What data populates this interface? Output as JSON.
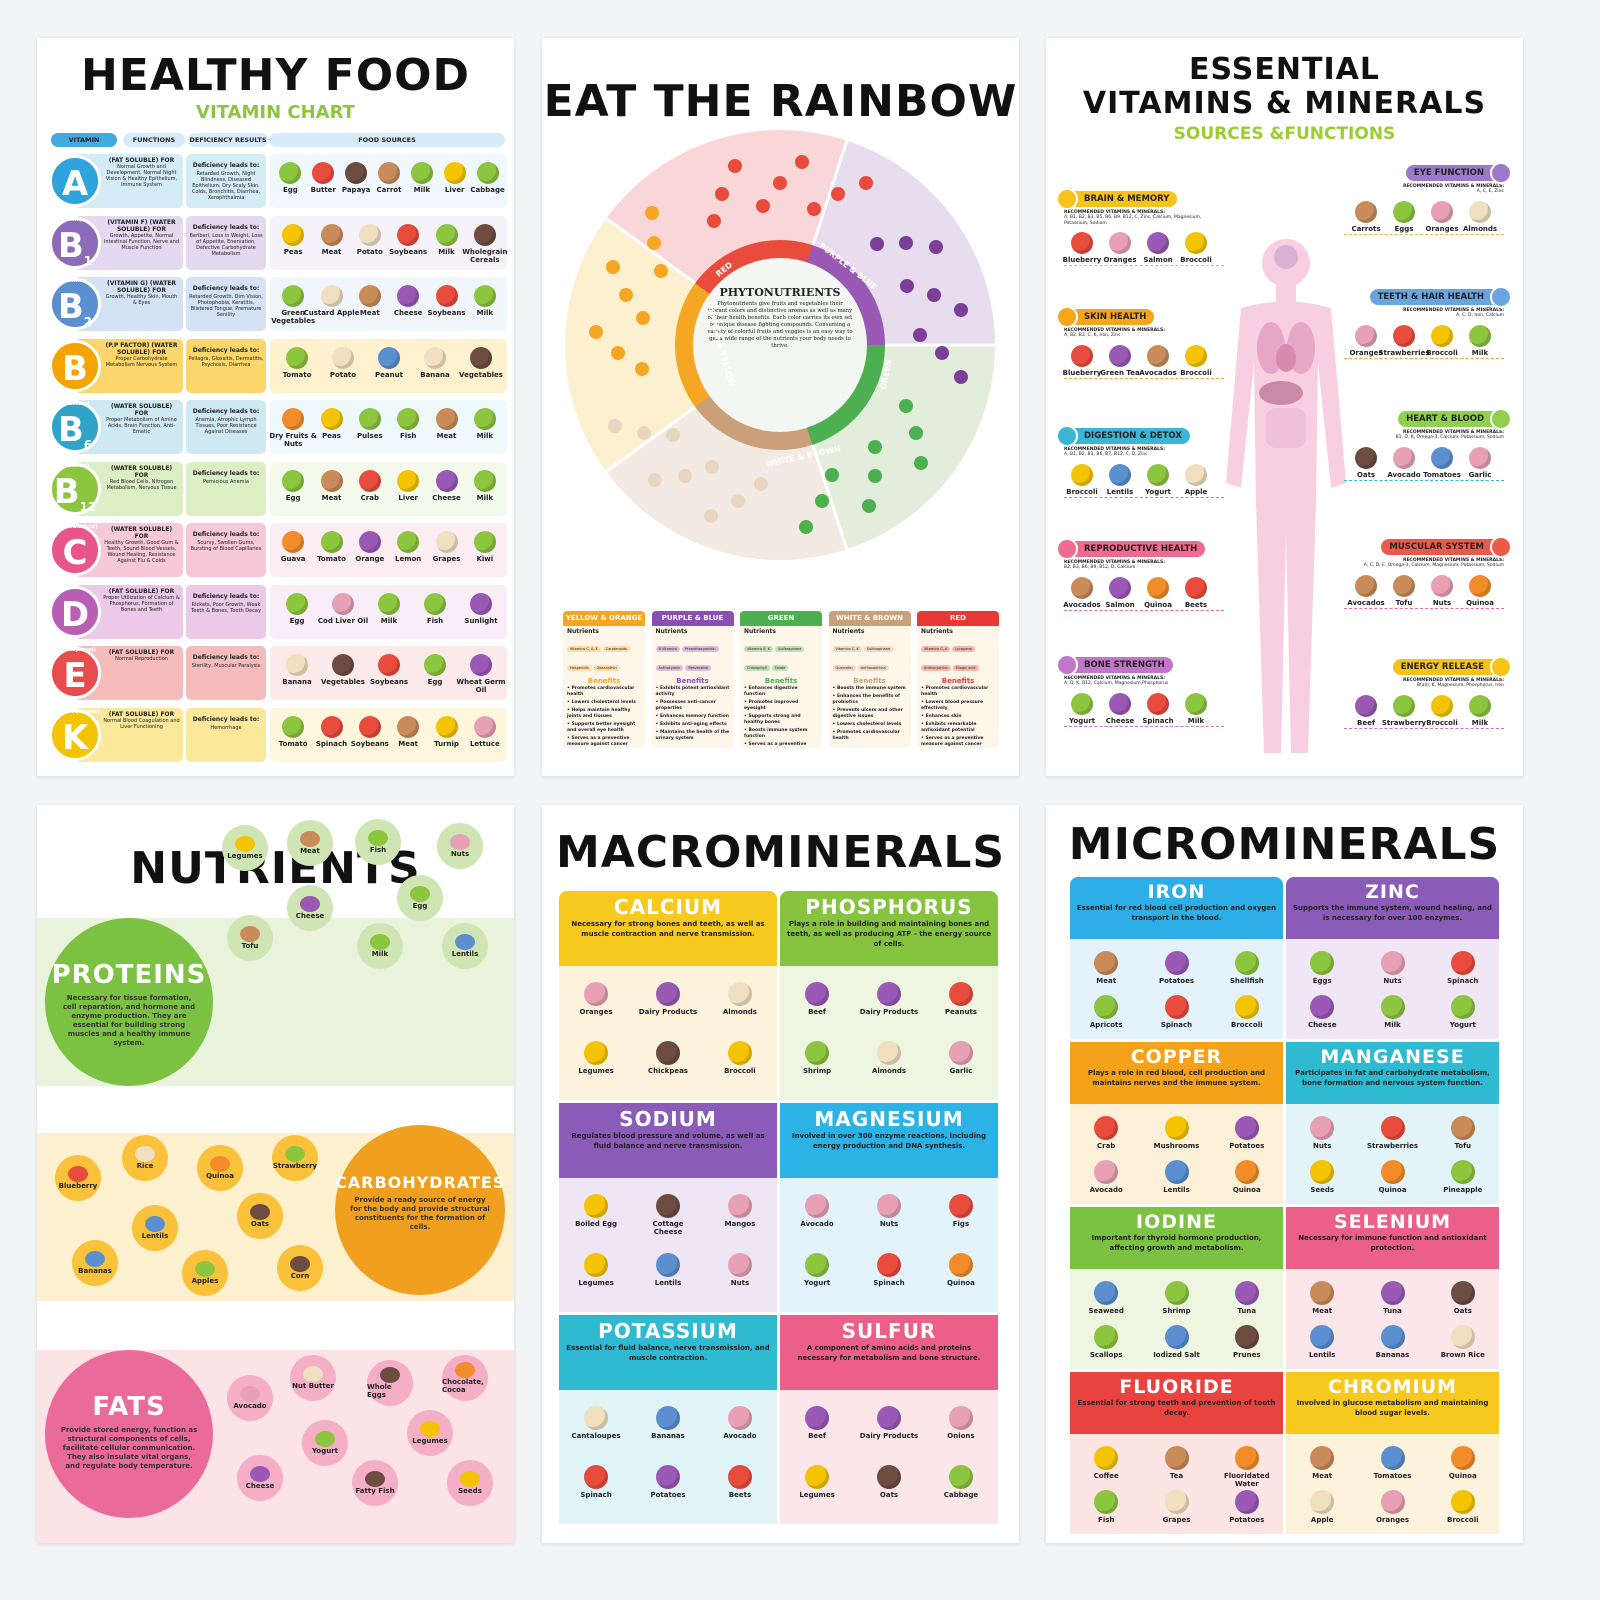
{
  "healthy_food": {
    "title": "HEALTHY FOOD",
    "subtitle": "VITAMIN CHART",
    "headers": [
      "VITAMIN",
      "FUNCTIONS",
      "DEFICIENCY RESULTS",
      "FOOD SOURCES"
    ],
    "deficiency_label": "Deficiency leads to:",
    "rows": [
      {
        "letter": "A",
        "sub": "",
        "tag": "",
        "color": "#2fa3dc",
        "bg": "#d4ebf8",
        "type": "(FAT SOLUBLE) FOR",
        "functions": "Normal Growth and Development, Normal Night Vision & Healthy Epithelium, Immune System",
        "deficiency": "Retarded Growth, Night Blindness, Diseased Epithelium, Dry Scaly Skin, Colds, Bronchitis, Diarrhea, Xerophthalmia",
        "foods": [
          "Egg",
          "Butter",
          "Papaya",
          "Carrot",
          "Milk",
          "Liver",
          "Cabbage"
        ]
      },
      {
        "letter": "B",
        "sub": "1",
        "tag": "(Thiamin)",
        "color": "#8e6bb8",
        "bg": "#e3d9f0",
        "type": "(VITAMIN F) (WATER SOLUBLE) FOR",
        "functions": "Growth, Appetite, Normal Intestinal Function, Nerve and Muscle Function",
        "deficiency": "Beriberi, Loss in Weight, Loss of Appetite, Enervation, Defective Carbohydrate Metabolism",
        "foods": [
          "Peas",
          "Meat",
          "Potato",
          "Soybeans",
          "Milk",
          "Wholegrain Cereals"
        ]
      },
      {
        "letter": "B",
        "sub": "2",
        "tag": "(Riboflavin)",
        "color": "#5b8fd0",
        "bg": "#d5e2f5",
        "type": "(VITAMIN G) (WATER SOLUBLE) FOR",
        "functions": "Growth, Healthy Skin, Mouth & Eyes",
        "deficiency": "Retarded Growth, Dim Vision, Photophobia, Keratitis, Blistered Tongue, Premature Senility",
        "foods": [
          "Green Vegetables",
          "Custard Apple",
          "Meat",
          "Cheese",
          "Soybeans",
          "Milk"
        ]
      },
      {
        "letter": "B",
        "sub": "",
        "tag": "",
        "color": "#f5a300",
        "bg": "#fcd66a",
        "type": "(P.P FACTOR) (WATER SOLUBLE) FOR",
        "functions": "Proper Carbohydrate Metabolism Nervous System",
        "deficiency": "Pellagra, Glossitis, Dermatitis, Psychosis, Diarrhea",
        "foods": [
          "Tomato",
          "Potato",
          "Peanut",
          "Banana",
          "Vegetables"
        ]
      },
      {
        "letter": "B",
        "sub": "6",
        "tag": "(Pyridoxine)",
        "color": "#2fa3c8",
        "bg": "#cfe9f3",
        "type": "(WATER SOLUBLE) FOR",
        "functions": "Proper Metabolism of Amino Acids, Brain Function, Anti-Emetic",
        "deficiency": "Anemia, Atrophic Lymph Tissues, Poor Resistance Against Diseases",
        "foods": [
          "Dry Fruits & Nuts",
          "Peas",
          "Pulses",
          "Fish",
          "Meat",
          "Milk"
        ]
      },
      {
        "letter": "B",
        "sub": "12",
        "tag": "(Cobalamin)",
        "color": "#8cc63f",
        "bg": "#dcefc4",
        "type": "(WATER SOLUBLE) FOR",
        "functions": "Red Blood Cells, Nitrogen Metabolism, Nervous Tissue",
        "deficiency": "Pernicious Anemia",
        "foods": [
          "Egg",
          "Meat",
          "Crab",
          "Liver",
          "Cheese",
          "Milk"
        ]
      },
      {
        "letter": "C",
        "sub": "",
        "tag": "(Ascorbic Acid)",
        "color": "#e8558a",
        "bg": "#f7c8d8",
        "type": "(WATER SOLUBLE) FOR",
        "functions": "Healthy Growth, Good Gum & Teeth, Sound Blood Vessels, Wound Healing, Resistance Against Flu & Colds",
        "deficiency": "Scurvy, Swollen Gums, Bursting of Blood Capillaries",
        "foods": [
          "Guava",
          "Tomato",
          "Orange",
          "Lemon",
          "Grapes",
          "Kiwi"
        ]
      },
      {
        "letter": "D",
        "sub": "",
        "tag": "",
        "color": "#b95fb5",
        "bg": "#ecc9e8",
        "type": "(FAT SOLUBLE) FOR",
        "functions": "Proper Utilization of Calcium & Phosphorus, Formation of Bones and Teeth",
        "deficiency": "Rickets, Poor Growth, Weak Teeth & Bones, Tooth Decay",
        "foods": [
          "Egg",
          "Cod Liver Oil",
          "Milk",
          "Fish",
          "Sunlight"
        ]
      },
      {
        "letter": "E",
        "sub": "",
        "tag": "(α-Tocopherol)",
        "color": "#e84c4c",
        "bg": "#f6bcbc",
        "type": "(FAT SOLUBLE) FOR",
        "functions": "Normal Reproduction",
        "deficiency": "Sterility, Muscular Paralysis",
        "foods": [
          "Banana",
          "Vegetables",
          "Soybeans",
          "Egg",
          "Wheat Germ Oil"
        ]
      },
      {
        "letter": "K",
        "sub": "",
        "tag": "(Phylloquinone)",
        "color": "#f5c400",
        "bg": "#fbe89a",
        "type": "(FAT SOLUBLE) FOR",
        "functions": "Normal Blood Coagulation and Liver Functioning",
        "deficiency": "Hemorrhage",
        "foods": [
          "Tomato",
          "Spinach",
          "Soybeans",
          "Meat",
          "Turnip",
          "Lettuce"
        ]
      }
    ]
  },
  "rainbow": {
    "title": "EAT THE RAINBOW",
    "center_title": "PHYTONUTRIENTS",
    "center_text": "Phytonutrients give fruits and vegetables their vibrant colors and distinctive aromas as well as many of their health benefits. Each color carries its own set of unique disease fighting compounds. Consuming a variety of colorful fruits and veggies is an easy way to get a wide range of the nutrients your body needs to thrive.",
    "wheel_labels": [
      "RED",
      "PURPLE & BLUE",
      "GREEN",
      "WHITE & BROWN",
      "ORANGE & YELLOW"
    ],
    "nutrients_label": "Nutrients",
    "benefits_label": "Benefits",
    "cards": [
      {
        "name": "YELLOW & ORANGE",
        "color": "#f5a623",
        "nutrients": [
          "Vitamins C, A, E",
          "Carotenoids",
          "Hesperidin",
          "Zeaxanthin"
        ],
        "benefits": [
          "Promotes cardiovascular health",
          "Lowers cholesterol levels",
          "Helps maintain healthy joints and tissues",
          "Supports better eyesight and overall eye health",
          "Serves as a preventive measure against cancer"
        ]
      },
      {
        "name": "PURPLE & BLUE",
        "color": "#8b4fb3",
        "nutrients": [
          "B Vitamins",
          "Proanthocyanidin",
          "Anthocyanin",
          "Resveratrol"
        ],
        "benefits": [
          "Exhibits potent antioxidant activity",
          "Possesses anti-cancer properties",
          "Enhances memory function",
          "Exhibits anti-aging effects",
          "Maintains the health of the urinary system"
        ]
      },
      {
        "name": "GREEN",
        "color": "#4caf50",
        "nutrients": [
          "Vitamins E, K",
          "Sulforaphane",
          "Chlorophyll",
          "Folate"
        ],
        "benefits": [
          "Enhances digestive function",
          "Promotes improved eyesight",
          "Supports strong and healthy bones",
          "Boosts immune system function",
          "Serves as a preventive measure against cancer"
        ]
      },
      {
        "name": "WHITE & BROWN",
        "color": "#c9a07a",
        "nutrients": [
          "Vitamins C, K",
          "Sulforaphane",
          "Quercetin",
          "Anthoxanthins"
        ],
        "benefits": [
          "Boosts the immune system",
          "Enhances the benefits of probiotics",
          "Prevents ulcers and other digestive issues",
          "Lowers cholesterol levels",
          "Promotes cardiovascular health"
        ]
      },
      {
        "name": "RED",
        "color": "#e53935",
        "nutrients": [
          "Vitamins C, A",
          "Lycopene",
          "Anthocyanins",
          "Ellagic acid"
        ],
        "benefits": [
          "Promotes cardiovascular health",
          "Lowers blood pressure effectively",
          "Enhances skin",
          "Exhibits remarkable antioxidant potential",
          "Serves as a preventive measure against cancer"
        ]
      }
    ]
  },
  "essential": {
    "title_line1": "ESSENTIAL",
    "title_line2": "VITAMINS & MINERALS",
    "subtitle": "SOURCES &FUNCTIONS",
    "rec_label": "RECOMMENDED VITAMINS & MINERALS:",
    "left": [
      {
        "name": "BRAIN & MEMORY",
        "color": "#f7c31b",
        "vitamins": "A, B1, B2, B3, B5, B6, B9, B12, C, Zinc, Calcium, Magnesium, Potassium, Sodium",
        "foods": [
          "Blueberry",
          "Oranges",
          "Salmon",
          "Broccoli"
        ]
      },
      {
        "name": "SKIN HEALTH",
        "color": "#f7a51b",
        "vitamins": "A, B2, B3, C, K, Iron, Zinc",
        "foods": [
          "Blueberry",
          "Green Tea",
          "Avocados",
          "Broccoli"
        ]
      },
      {
        "name": "DIGESTION & DETOX",
        "color": "#3bb6d6",
        "vitamins": "A, B1, B2, B3, B6, B7, B12, C, D, Zinc",
        "foods": [
          "Broccoli",
          "Lentils",
          "Yogurt",
          "Apple"
        ]
      },
      {
        "name": "REPRODUCTIVE HEALTH",
        "color": "#ef6b8f",
        "vitamins": "B2, B3, B6, B9, B12, D, Calcium",
        "foods": [
          "Avocados",
          "Salmon",
          "Quinoa",
          "Beets"
        ]
      },
      {
        "name": "BONE STRENGTH",
        "color": "#c276c9",
        "vitamins": "A, D, K, B12, Calcium, Magnesium,Phosphorus",
        "foods": [
          "Yogurt",
          "Cheese",
          "Spinach",
          "Milk"
        ]
      }
    ],
    "right": [
      {
        "name": "EYE FUNCTION",
        "color": "#9a7ac9",
        "vitamins": "A, C, E, Zinc",
        "foods": [
          "Carrots",
          "Eggs",
          "Oranges",
          "Almonds"
        ]
      },
      {
        "name": "TEETH & HAIR HEALTH",
        "color": "#6aa5e0",
        "vitamins": "A, C, D, Iron, Calcium",
        "foods": [
          "Oranges",
          "Strawberries",
          "Broccoli",
          "Milk"
        ]
      },
      {
        "name": "HEART & BLOOD",
        "color": "#8fd14f",
        "vitamins": "B1, D, K, Omega-3, Calcium, Potassium, Sodium",
        "foods": [
          "Oats",
          "Avocado",
          "Tomatoes",
          "Garlic"
        ]
      },
      {
        "name": "MUSCULAR SYSTEM",
        "color": "#ee5a4a",
        "vitamins": "A, C, D, E, Omega-3, Calcium, Magnesium, Potassium, Sodium",
        "foods": [
          "Avocados",
          "Tofu",
          "Nuts",
          "Quinoa"
        ]
      },
      {
        "name": "ENERGY RELEASE",
        "color": "#f7c31b",
        "vitamins": "B(all), K, Magnesium, Phosphorus, Iron",
        "foods": [
          "Beef",
          "Strawberry",
          "Broccoli",
          "Milk"
        ]
      }
    ]
  },
  "nutrients": {
    "title": "NUTRIENTS",
    "groups": [
      {
        "name": "PROTEINS",
        "color": "#7cc242",
        "band": "#eaf4dc",
        "bubble": "#cfe6b4",
        "description": "Necessary for tissue formation, cell reparation, and hormone and enzyme production. They are essential for building strong muscles and a healthy immune system.",
        "foods": [
          "Legumes",
          "Meat",
          "Fish",
          "Nuts",
          "Egg",
          "Cheese",
          "Tofu",
          "Milk",
          "Lentils"
        ]
      },
      {
        "name": "CARBOHYDRATES",
        "color": "#f0a01e",
        "band": "#fdf0cf",
        "bubble": "#f9c23a",
        "description": "Provide a ready source of energy for the body and provide structural constituents for the formation of cells.",
        "foods": [
          "Blueberry",
          "Rice",
          "Quinoa",
          "Strawberry",
          "Oats",
          "Lentils",
          "Bananas",
          "Apples",
          "Corn"
        ]
      },
      {
        "name": "FATS",
        "color": "#ea6a9a",
        "band": "#fbe3e6",
        "bubble": "#f4aec6",
        "description": "Provide stored energy, function as structural components of cells, facilitate cellular communication. They also insulate vital organs, and regulate body temperature.",
        "foods": [
          "Avocado",
          "Nut Butter",
          "Whole Eggs",
          "Chocolate, Cocoa",
          "Legumes",
          "Yogurt",
          "Cheese",
          "Fatty Fish",
          "Seeds"
        ]
      }
    ]
  },
  "macrominerals": {
    "title": "MACROMINERALS",
    "cards": [
      {
        "name": "CALCIUM",
        "color": "#f7c81e",
        "bg": "#fdf3dc",
        "description": "Necessary for strong bones and teeth, as well as muscle contraction and nerve transmission.",
        "foods": [
          "Oranges",
          "Dairy Products",
          "Almonds",
          "Legumes",
          "Chickpeas",
          "Broccoli"
        ]
      },
      {
        "name": "PHOSPHORUS",
        "color": "#86c440",
        "bg": "#eef5e1",
        "description": "Plays a role in building and maintaining bones and teeth, as well as producing ATP - the energy source of cells.",
        "foods": [
          "Beef",
          "Dairy Products",
          "Peanuts",
          "Shrimp",
          "Almonds",
          "Garlic"
        ]
      },
      {
        "name": "SODIUM",
        "color": "#8a5cb8",
        "bg": "#eee6f4",
        "description": "Regulates blood pressure and volume, as well as fluid balance and nerve transmission.",
        "foods": [
          "Boiled Egg",
          "Cottage Cheese",
          "Mangos",
          "Legumes",
          "Lentils",
          "Nuts"
        ]
      },
      {
        "name": "MAGNESIUM",
        "color": "#2cb3e6",
        "bg": "#e3f3fb",
        "description": "Involved in over 300 enzyme reactions, including energy production and DNA synthesis.",
        "foods": [
          "Avocado",
          "Nuts",
          "Figs",
          "Yogurt",
          "Spinach",
          "Quinoa"
        ]
      },
      {
        "name": "POTASSIUM",
        "color": "#2fbad1",
        "bg": "#e1f4f7",
        "description": "Essential for fluid balance, nerve transmission, and muscle contraction.",
        "foods": [
          "Cantaloupes",
          "Bananas",
          "Avocado",
          "Spinach",
          "Potatoes",
          "Beets"
        ]
      },
      {
        "name": "SULFUR",
        "color": "#ec5f8a",
        "bg": "#fbe6ea",
        "description": "A component of amino acids and proteins necessary for metabolism and bone structure.",
        "foods": [
          "Beef",
          "Dairy Products",
          "Onions",
          "Legumes",
          "Oats",
          "Cabbage"
        ]
      }
    ]
  },
  "microminerals": {
    "title": "MICROMINERALS",
    "cards": [
      {
        "name": "IRON",
        "color": "#2eaee6",
        "bg": "#e4f3fb",
        "description": "Essential for red blood cell production and oxygen transport in the blood.",
        "foods": [
          "Meat",
          "Potatoes",
          "Shellfish",
          "Apricots",
          "Spinach",
          "Broccoli"
        ]
      },
      {
        "name": "ZINC",
        "color": "#8a5cb8",
        "bg": "#efe7f5",
        "description": "Supports the immune system, wound healing, and is necessary for over 100 enzymes.",
        "foods": [
          "Eggs",
          "Nuts",
          "Spinach",
          "Cheese",
          "Milk",
          "Yogurt"
        ]
      },
      {
        "name": "COPPER",
        "color": "#f5a21b",
        "bg": "#fdf0d8",
        "description": "Plays a role in red blood, cell production and maintains nerves and the immune system.",
        "foods": [
          "Crab",
          "Mushrooms",
          "Potatoes",
          "Avocado",
          "Lentils",
          "Quinoa"
        ]
      },
      {
        "name": "MANGANESE",
        "color": "#2fbad1",
        "bg": "#e2f4f7",
        "description": "Participates in fat and carbohydrate metabolism, bone formation and nervous system function.",
        "foods": [
          "Nuts",
          "Strawberries",
          "Tofu",
          "Seeds",
          "Quinoa",
          "Pineapple"
        ]
      },
      {
        "name": "IODINE",
        "color": "#7cc242",
        "bg": "#eef5e1",
        "description": "Important for thyroid hormone production, affecting growth and metabolism.",
        "foods": [
          "Seaweed",
          "Shrimp",
          "Tuna",
          "Scallops",
          "Iodized Salt",
          "Prunes"
        ]
      },
      {
        "name": "SELENIUM",
        "color": "#ec5f8a",
        "bg": "#fbe6ea",
        "description": "Necessary for immune function and antioxidant protection.",
        "foods": [
          "Meat",
          "Tuna",
          "Oats",
          "Lentils",
          "Bananas",
          "Brown Rice"
        ]
      },
      {
        "name": "FLUORIDE",
        "color": "#e8433f",
        "bg": "#fce5e3",
        "description": "Essential for strong teeth and prevention of tooth decay.",
        "foods": [
          "Coffee",
          "Tea",
          "Fluoridated Water",
          "Fish",
          "Grapes",
          "Potatoes"
        ]
      },
      {
        "name": "CHROMIUM",
        "color": "#f7c81e",
        "bg": "#fdf3dc",
        "description": "Involved in glucose metabolism and maintaining blood sugar levels.",
        "foods": [
          "Meat",
          "Tomatoes",
          "Quinoa",
          "Apple",
          "Oranges",
          "Broccoli"
        ]
      }
    ]
  }
}
